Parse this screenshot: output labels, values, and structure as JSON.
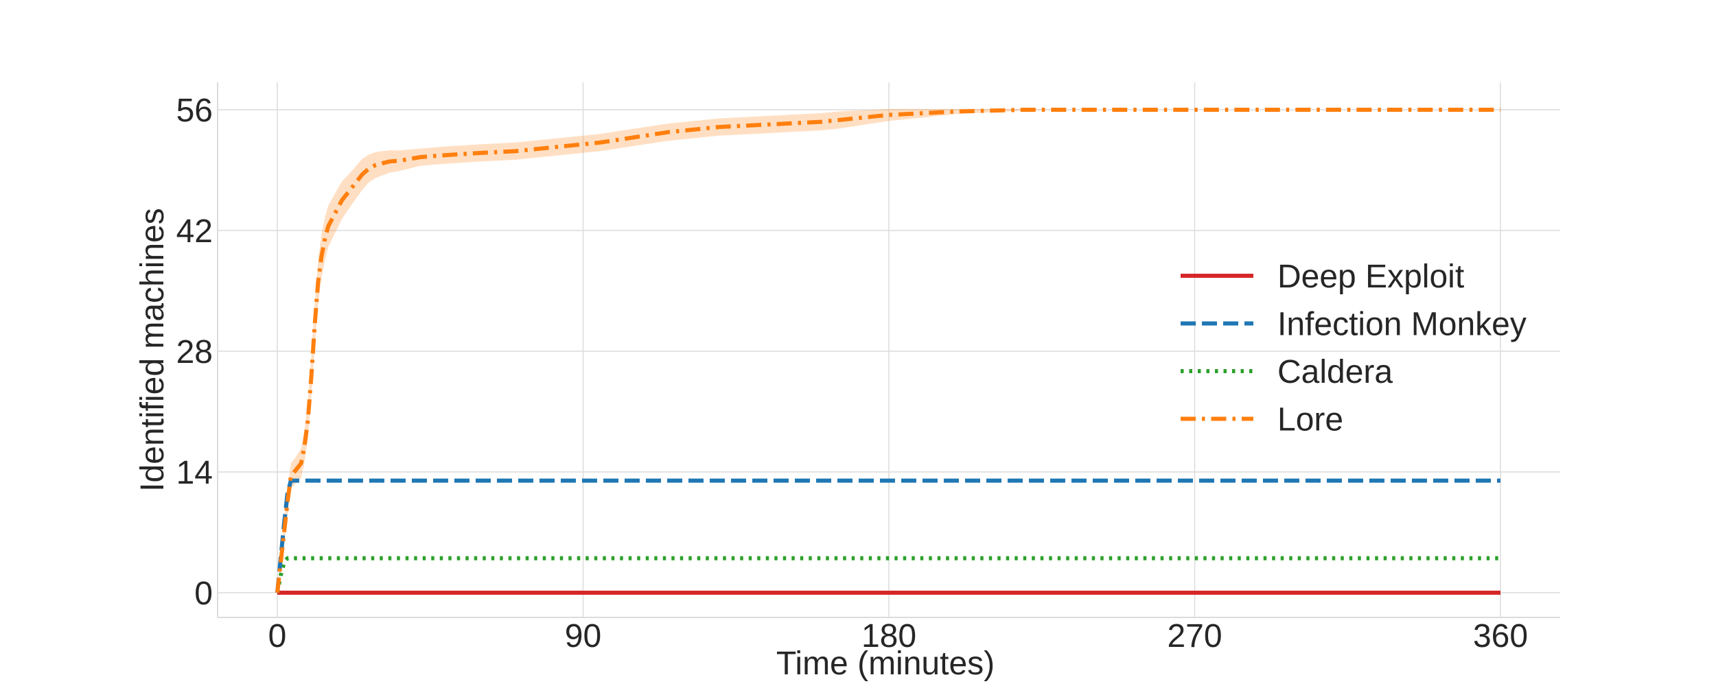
{
  "chart_data": {
    "type": "line",
    "title": "",
    "xlabel": "Time (minutes)",
    "ylabel": "Identified machines",
    "xlim": [
      -17,
      370
    ],
    "ylim": [
      -2.8,
      59.2
    ],
    "x_ticks": [
      0,
      90,
      180,
      270,
      360
    ],
    "y_ticks": [
      0,
      14,
      28,
      42,
      56
    ],
    "x_tick_labels": [
      "0",
      "90",
      "180",
      "270",
      "360"
    ],
    "y_tick_labels": [
      "0",
      "14",
      "28",
      "42",
      "56"
    ],
    "grid": true,
    "legend_position": "center-right",
    "series": [
      {
        "name": "Deep Exploit",
        "color": "#d62728",
        "style": "solid",
        "x": [
          0,
          360
        ],
        "y": [
          0,
          0
        ]
      },
      {
        "name": "Infection Monkey",
        "color": "#1f77b4",
        "style": "dashed",
        "x": [
          0,
          1,
          2,
          3,
          4,
          360
        ],
        "y": [
          0,
          4,
          8,
          11.5,
          13,
          13
        ]
      },
      {
        "name": "Caldera",
        "color": "#2ca02c",
        "style": "dotted",
        "x": [
          0,
          1,
          2,
          3,
          360
        ],
        "y": [
          0,
          2,
          3.5,
          4,
          4
        ]
      },
      {
        "name": "Lore",
        "color": "#ff7f0e",
        "style": "dashdot",
        "band": true,
        "x": [
          0,
          1,
          2,
          3,
          4,
          5,
          6,
          7,
          8,
          9,
          10,
          11,
          12,
          13,
          14,
          15,
          17,
          19,
          21,
          23,
          25,
          27,
          29,
          31,
          33,
          36,
          39,
          42,
          45,
          48,
          52,
          56,
          60,
          65,
          70,
          75,
          80,
          85,
          90,
          95,
          100,
          105,
          110,
          115,
          120,
          125,
          130,
          135,
          140,
          145,
          150,
          155,
          160,
          165,
          170,
          175,
          180,
          185,
          190,
          195,
          200,
          210,
          220,
          230,
          240,
          250,
          260,
          270,
          280,
          300,
          320,
          340,
          360
        ],
        "y": [
          0,
          3.5,
          7,
          10.5,
          13.5,
          14,
          14.5,
          15,
          17,
          20,
          25,
          31,
          36,
          39,
          41,
          42.5,
          44,
          45.5,
          46.5,
          47.5,
          48.5,
          49.2,
          49.6,
          49.8,
          50,
          50.1,
          50.3,
          50.5,
          50.6,
          50.7,
          50.8,
          50.9,
          51,
          51.1,
          51.2,
          51.4,
          51.6,
          51.8,
          52,
          52.2,
          52.5,
          52.8,
          53.1,
          53.4,
          53.6,
          53.8,
          54,
          54.1,
          54.2,
          54.3,
          54.4,
          54.5,
          54.6,
          54.8,
          55,
          55.2,
          55.4,
          55.5,
          55.6,
          55.7,
          55.8,
          55.9,
          56,
          56,
          56,
          56,
          56,
          56,
          56,
          56,
          56,
          56,
          56
        ],
        "ci": [
          0,
          0.8,
          1.2,
          1.4,
          1.5,
          1.5,
          1.6,
          1.7,
          1.9,
          2.1,
          2.3,
          2.4,
          2.5,
          2.5,
          2.5,
          2.4,
          2.3,
          2.2,
          2.0,
          1.9,
          1.8,
          1.6,
          1.5,
          1.4,
          1.3,
          1.2,
          1.1,
          1.0,
          1.0,
          1.0,
          1.0,
          1.0,
          1.0,
          1.0,
          1.0,
          1.0,
          1.0,
          1.0,
          1.0,
          1.0,
          1.0,
          1.0,
          1.0,
          1.0,
          1.0,
          1.0,
          1.0,
          1.0,
          1.0,
          1.0,
          1.0,
          1.0,
          1.0,
          1.0,
          0.9,
          0.8,
          0.7,
          0.6,
          0.5,
          0.4,
          0.3,
          0.2,
          0.1,
          0,
          0,
          0,
          0,
          0,
          0,
          0,
          0,
          0,
          0
        ]
      }
    ]
  }
}
